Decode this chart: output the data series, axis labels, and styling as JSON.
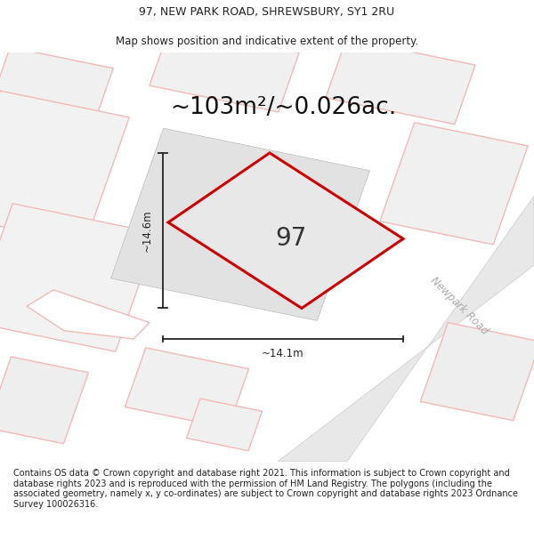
{
  "title_line1": "97, NEW PARK ROAD, SHREWSBURY, SY1 2RU",
  "title_line2": "Map shows position and indicative extent of the property.",
  "area_text": "~103m²/~0.026ac.",
  "number_label": "97",
  "dim_width": "~14.1m",
  "dim_height": "~14.6m",
  "road_label": "Newpark Road",
  "footer_text": "Contains OS data © Crown copyright and database right 2021. This information is subject to Crown copyright and database rights 2023 and is reproduced with the permission of HM Land Registry. The polygons (including the associated geometry, namely x, y co-ordinates) are subject to Crown copyright and database rights 2023 Ordnance Survey 100026316.",
  "bg_color": "#ffffff",
  "main_polygon_fill": "#e8e8e8",
  "main_polygon_edge": "#cc0000",
  "bg_parcel_fill": "#e2e2e2",
  "neighbor_fill": "#ffffff",
  "neighbor_edge": "#f4b8b8",
  "road_fill": "#e8e8e8",
  "road_edge": "#cccccc",
  "title_fontsize": 9.0,
  "area_fontsize": 19,
  "number_fontsize": 20,
  "footer_fontsize": 7.0,
  "dim_fontsize": 8.5,
  "road_label_fontsize": 8.5
}
